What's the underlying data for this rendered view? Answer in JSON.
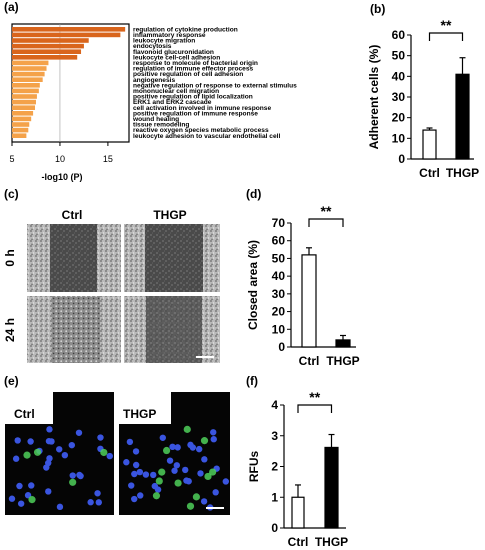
{
  "chart_data": [
    {
      "panel": "(a)",
      "type": "bar",
      "orientation": "horizontal",
      "xlabel": "-log10 (P)",
      "xticks": [
        "5",
        "10",
        "15"
      ],
      "xlim": [
        5,
        17
      ],
      "categories": [
        "regulation of cytokine production",
        "inflammatory response",
        "leukocyte migration",
        "endocytosis",
        "flavonoid glucuronidation",
        "leukocyte cell-cell adhesion",
        "response to molecule of bacterial origin",
        "regulation of immune effector process",
        "positive regulation of cell adhesion",
        "angiogenesis",
        "negative regulation of response to external stimulus",
        "mononuclear cell migration",
        "positive regulation of lipid localization",
        "ERK1 and ERK2 cascade",
        "cell activation involved in immune response",
        "positive regulation of immune response",
        "wound healing",
        "tissue remodeling",
        "reactive oxygen species metabolic process",
        "leukocyte adhesion to vascular endothelial cell"
      ],
      "values": [
        16.8,
        16.3,
        13.0,
        12.5,
        12.2,
        11.8,
        8.8,
        8.6,
        8.4,
        8.2,
        7.9,
        7.8,
        7.6,
        7.5,
        7.4,
        7.2,
        7.0,
        6.8,
        6.7,
        6.5
      ],
      "colors": {
        "dark": "#d9651c",
        "light": "#f4a24a"
      }
    },
    {
      "panel": "(b)",
      "type": "bar",
      "categories": [
        "Ctrl",
        "THGP"
      ],
      "values": [
        14,
        41
      ],
      "errors": [
        1,
        8
      ],
      "ylabel": "Adherent cells (%)",
      "ylim": [
        0,
        60
      ],
      "yticks": [
        "0",
        "10",
        "20",
        "30",
        "40",
        "50",
        "60"
      ],
      "significance": "**"
    },
    {
      "panel": "(d)",
      "type": "bar",
      "categories": [
        "Ctrl",
        "THGP"
      ],
      "values": [
        52,
        4
      ],
      "errors": [
        4,
        2.5
      ],
      "ylabel": "Closed area (%)",
      "ylim": [
        0,
        70
      ],
      "yticks": [
        "0",
        "10",
        "20",
        "30",
        "40",
        "50",
        "60",
        "70"
      ],
      "significance": "**"
    },
    {
      "panel": "(f)",
      "type": "bar",
      "categories": [
        "Ctrl",
        "THGP"
      ],
      "values": [
        1.0,
        2.62
      ],
      "errors": [
        0.4,
        0.42
      ],
      "ylabel": "RFUs",
      "ylim": [
        0,
        4
      ],
      "yticks": [
        "0",
        "1",
        "2",
        "3",
        "4"
      ],
      "significance": "**"
    }
  ],
  "panel_c": {
    "label": "(c)",
    "columns": [
      "Ctrl",
      "THGP"
    ],
    "rows": [
      "0 h",
      "24 h"
    ]
  },
  "panel_e": {
    "label": "(e)",
    "images": [
      "Ctrl",
      "THGP"
    ]
  }
}
